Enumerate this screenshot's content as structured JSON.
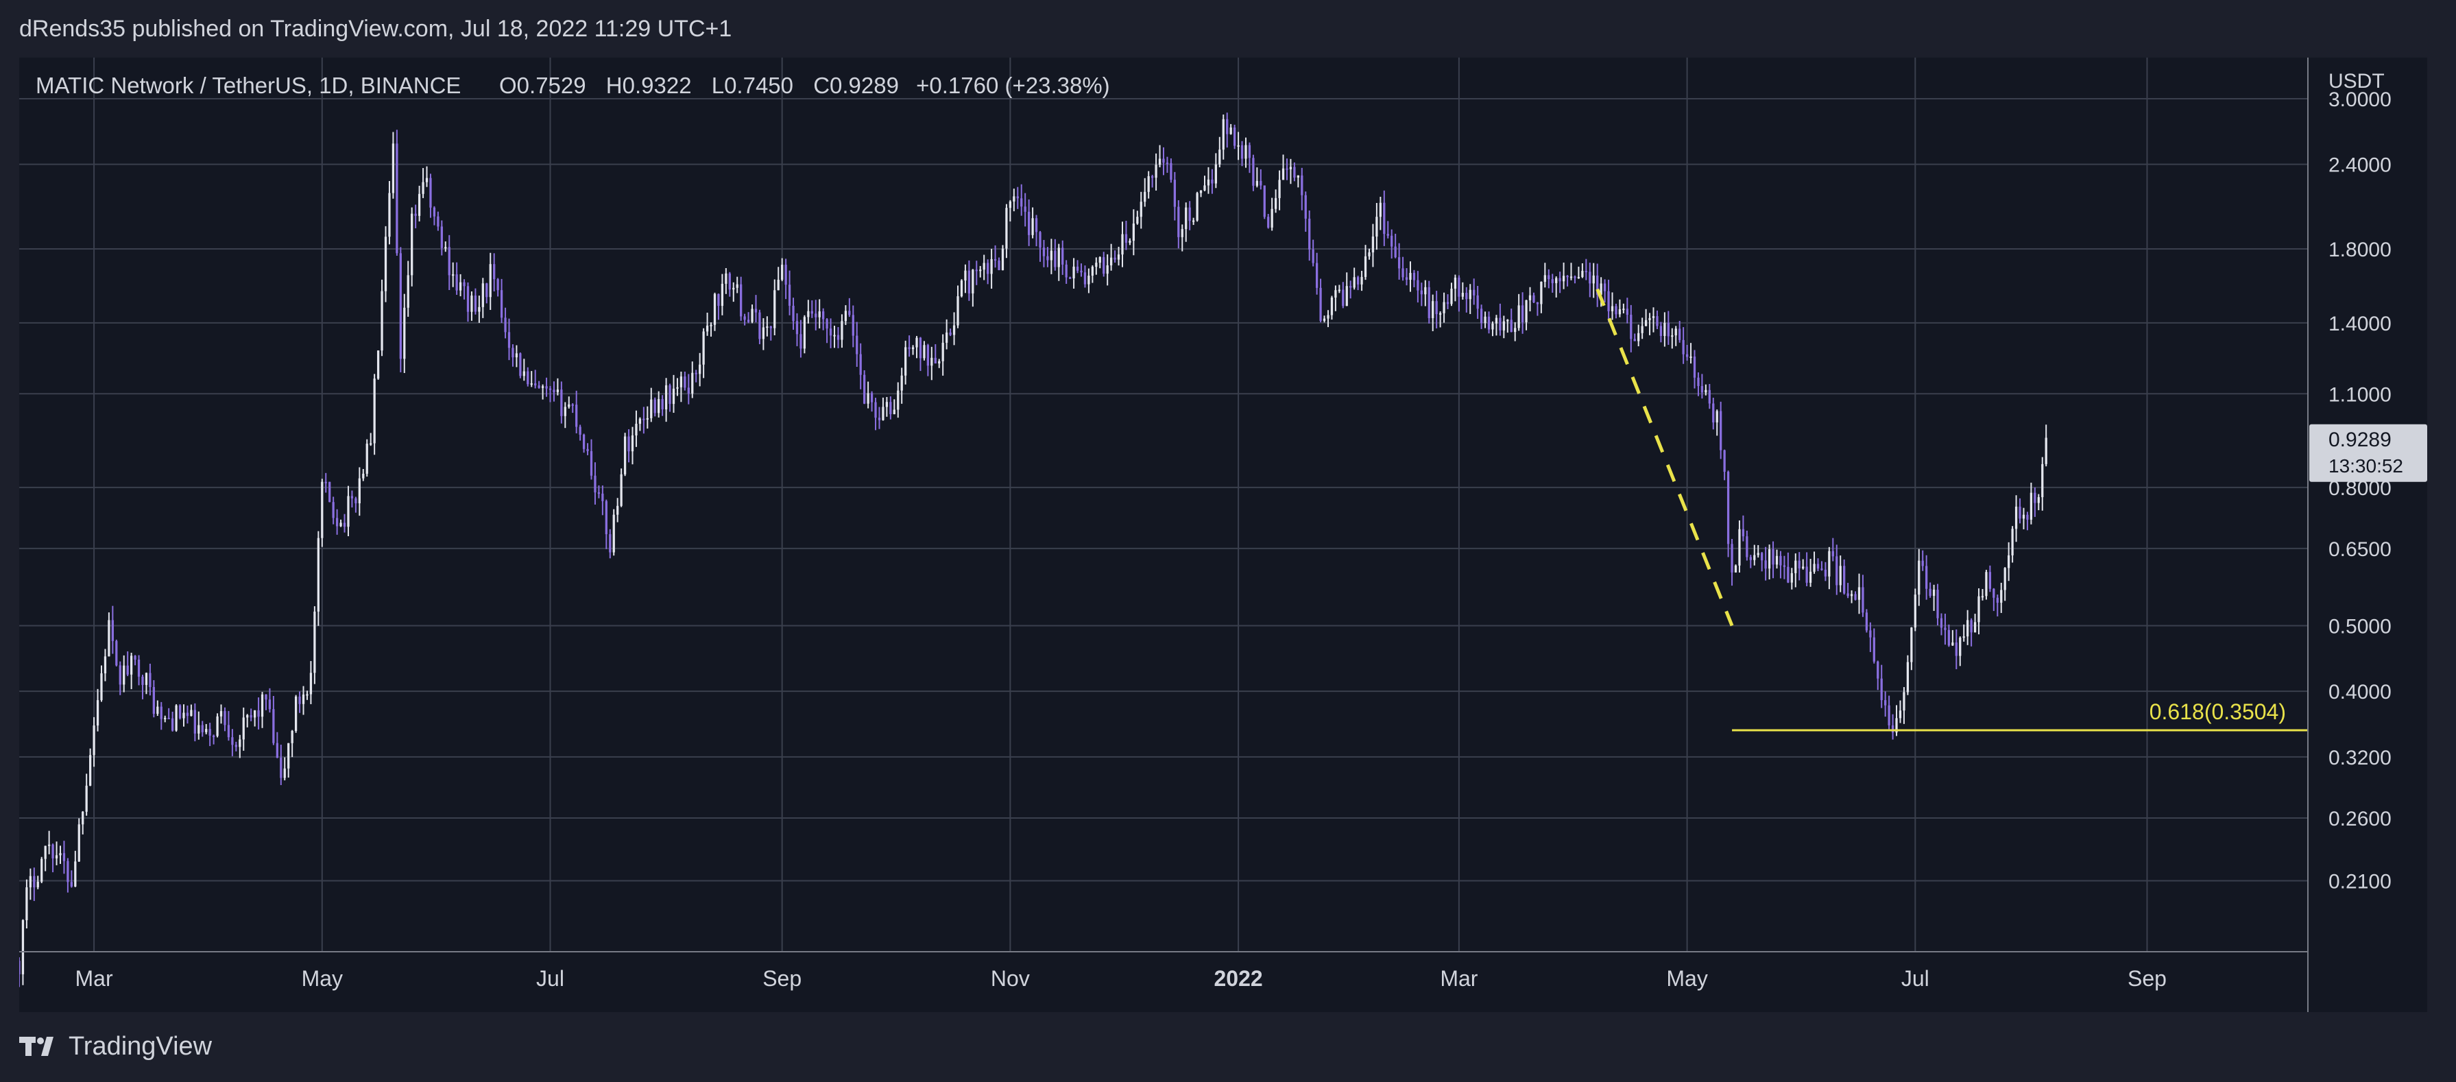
{
  "publisher_line": "dRends35 published on TradingView.com, Jul 18, 2022 11:29 UTC+1",
  "brand": "TradingView",
  "chart_data": {
    "type": "candlestick",
    "title": "MATIC Network / TetherUS, 1D, BINANCE",
    "ohlc_header": {
      "open": "O0.7529",
      "high": "H0.9322",
      "low": "L0.7450",
      "close": "C0.9289",
      "change": "+0.1760 (+23.38%)"
    },
    "currency_label": "USDT",
    "scale": "log",
    "y_range": [
      0.165,
      3.45
    ],
    "y_ticks": [
      "3.0000",
      "2.4000",
      "1.8000",
      "1.4000",
      "1.1000",
      "0.8000",
      "0.6500",
      "0.5000",
      "0.4000",
      "0.3200",
      "0.2600",
      "0.2100"
    ],
    "x_ticks": [
      "Mar",
      "May",
      "Jul",
      "Sep",
      "Nov",
      "2022",
      "Mar",
      "May",
      "Jul",
      "Sep"
    ],
    "x_tick_days": [
      58,
      119,
      180,
      242,
      303,
      364,
      423,
      484,
      545,
      607
    ],
    "x_range_days": [
      38,
      650
    ],
    "last_price": {
      "value": "0.9289",
      "countdown": "13:30:52"
    },
    "fib_level": {
      "label": "0.618(0.3504)",
      "value": 0.3504,
      "start_day": 496
    },
    "trend_line": [
      {
        "day": 460,
        "price": 1.57
      },
      {
        "day": 496,
        "price": 0.5
      }
    ],
    "colors": {
      "up": "#e4e6ee",
      "down": "#8a6fe0",
      "fib": "#e9e24a",
      "grid": "#3a3f4d"
    },
    "price_path": [
      [
        38,
        0.16
      ],
      [
        40,
        0.2
      ],
      [
        46,
        0.24
      ],
      [
        52,
        0.21
      ],
      [
        58,
        0.36
      ],
      [
        62,
        0.5
      ],
      [
        64,
        0.42
      ],
      [
        70,
        0.44
      ],
      [
        76,
        0.36
      ],
      [
        82,
        0.37
      ],
      [
        88,
        0.34
      ],
      [
        92,
        0.37
      ],
      [
        96,
        0.34
      ],
      [
        104,
        0.39
      ],
      [
        108,
        0.29
      ],
      [
        112,
        0.38
      ],
      [
        116,
        0.42
      ],
      [
        119,
        0.8
      ],
      [
        124,
        0.71
      ],
      [
        128,
        0.78
      ],
      [
        132,
        0.95
      ],
      [
        136,
        1.8
      ],
      [
        138,
        2.5
      ],
      [
        140,
        1.2
      ],
      [
        143,
        1.95
      ],
      [
        146,
        2.3
      ],
      [
        150,
        1.9
      ],
      [
        155,
        1.6
      ],
      [
        160,
        1.45
      ],
      [
        164,
        1.65
      ],
      [
        168,
        1.38
      ],
      [
        174,
        1.12
      ],
      [
        180,
        1.08
      ],
      [
        186,
        1.05
      ],
      [
        190,
        0.9
      ],
      [
        196,
        0.66
      ],
      [
        200,
        0.92
      ],
      [
        206,
        1.05
      ],
      [
        212,
        1.1
      ],
      [
        218,
        1.15
      ],
      [
        224,
        1.5
      ],
      [
        228,
        1.62
      ],
      [
        232,
        1.45
      ],
      [
        238,
        1.35
      ],
      [
        242,
        1.72
      ],
      [
        246,
        1.3
      ],
      [
        250,
        1.45
      ],
      [
        256,
        1.3
      ],
      [
        260,
        1.45
      ],
      [
        264,
        1.1
      ],
      [
        268,
        1.02
      ],
      [
        272,
        1.05
      ],
      [
        276,
        1.32
      ],
      [
        280,
        1.25
      ],
      [
        286,
        1.3
      ],
      [
        290,
        1.6
      ],
      [
        296,
        1.65
      ],
      [
        300,
        1.75
      ],
      [
        303,
        2.15
      ],
      [
        308,
        1.95
      ],
      [
        312,
        1.82
      ],
      [
        318,
        1.7
      ],
      [
        324,
        1.62
      ],
      [
        330,
        1.75
      ],
      [
        336,
        1.9
      ],
      [
        340,
        2.3
      ],
      [
        344,
        2.5
      ],
      [
        348,
        1.95
      ],
      [
        352,
        2.05
      ],
      [
        356,
        2.2
      ],
      [
        360,
        2.75
      ],
      [
        363,
        2.62
      ],
      [
        366,
        2.5
      ],
      [
        372,
        2.0
      ],
      [
        376,
        2.4
      ],
      [
        380,
        2.25
      ],
      [
        384,
        1.75
      ],
      [
        386,
        1.45
      ],
      [
        392,
        1.55
      ],
      [
        396,
        1.65
      ],
      [
        402,
        2.05
      ],
      [
        406,
        1.75
      ],
      [
        410,
        1.65
      ],
      [
        416,
        1.45
      ],
      [
        420,
        1.52
      ],
      [
        423,
        1.6
      ],
      [
        428,
        1.45
      ],
      [
        434,
        1.38
      ],
      [
        440,
        1.45
      ],
      [
        446,
        1.58
      ],
      [
        452,
        1.65
      ],
      [
        456,
        1.7
      ],
      [
        460,
        1.57
      ],
      [
        464,
        1.45
      ],
      [
        468,
        1.4
      ],
      [
        472,
        1.35
      ],
      [
        476,
        1.38
      ],
      [
        480,
        1.35
      ],
      [
        484,
        1.25
      ],
      [
        488,
        1.1
      ],
      [
        492,
        1.0
      ],
      [
        494,
        0.82
      ],
      [
        496,
        0.58
      ],
      [
        498,
        0.69
      ],
      [
        502,
        0.62
      ],
      [
        506,
        0.63
      ],
      [
        510,
        0.6
      ],
      [
        514,
        0.61
      ],
      [
        518,
        0.6
      ],
      [
        522,
        0.62
      ],
      [
        526,
        0.58
      ],
      [
        530,
        0.55
      ],
      [
        534,
        0.44
      ],
      [
        536,
        0.38
      ],
      [
        538,
        0.36
      ],
      [
        541,
        0.37
      ],
      [
        543,
        0.45
      ],
      [
        546,
        0.6
      ],
      [
        550,
        0.55
      ],
      [
        552,
        0.48
      ],
      [
        556,
        0.46
      ],
      [
        560,
        0.5
      ],
      [
        564,
        0.58
      ],
      [
        568,
        0.56
      ],
      [
        572,
        0.72
      ],
      [
        575,
        0.75
      ],
      [
        578,
        0.78
      ],
      [
        580,
        0.93
      ]
    ]
  }
}
